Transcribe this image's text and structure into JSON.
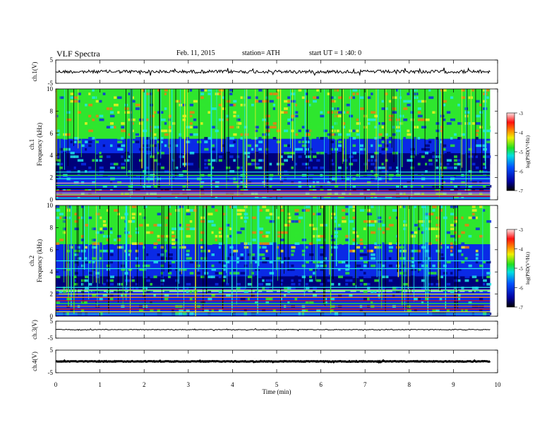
{
  "header": {
    "title": "VLF Spectra",
    "date": "Feb. 11, 2015",
    "station": "station= ATH",
    "start": "start  UT  =   1 :40: 0"
  },
  "chart_data": {
    "type": "heatmap",
    "xlabel": "Time (min)",
    "xlim": [
      0,
      10
    ],
    "xticks": [
      "0",
      "1",
      "2",
      "3",
      "4",
      "5",
      "6",
      "7",
      "8",
      "9",
      "10"
    ],
    "panels": [
      {
        "kind": "waveform",
        "ylabel": "ch.1(V)",
        "yticks": [
          "5",
          "-5"
        ],
        "ylim": [
          -5,
          5
        ],
        "amplitude": 0.7
      },
      {
        "kind": "spectrogram",
        "ylabel": "ch.1\nFrequency (kHz)",
        "ylabel_top": "ch.1",
        "ylabel_bottom": "Frequency (kHz)",
        "yticks": [
          "10",
          "8",
          "6",
          "4",
          "2",
          "0"
        ],
        "ylim": [
          0,
          10
        ]
      },
      {
        "kind": "spectrogram",
        "ylabel": "ch.2\nFrequency (kHz)",
        "ylabel_top": "ch.2",
        "ylabel_bottom": "Frequency (kHz)",
        "yticks": [
          "10",
          "8",
          "6",
          "4",
          "2",
          "0"
        ],
        "ylim": [
          0,
          10
        ]
      },
      {
        "kind": "waveform",
        "ylabel": "ch.3(V)",
        "yticks": [
          "5",
          "-5"
        ],
        "ylim": [
          -5,
          5
        ],
        "amplitude": 0.25
      },
      {
        "kind": "waveform",
        "ylabel": "ch.4(V)",
        "yticks": [
          "5",
          "-5"
        ],
        "ylim": [
          -5,
          5
        ],
        "amplitude": 0.15
      }
    ],
    "colorbar": {
      "label": "log(PSD(V²/Hz)",
      "ticks": [
        "-3",
        "-4",
        "-5",
        "-6",
        "-7"
      ],
      "range": [
        -7,
        -3
      ]
    },
    "colors": {
      "dark_blue": "#00007a",
      "blue": "#0a2ae6",
      "cyan": "#21e6e6",
      "green": "#2ee62e",
      "yellow": "#f0f020",
      "orange": "#f07a10",
      "red": "#e01010",
      "pink": "#f0a0a0",
      "black": "#000000"
    }
  }
}
